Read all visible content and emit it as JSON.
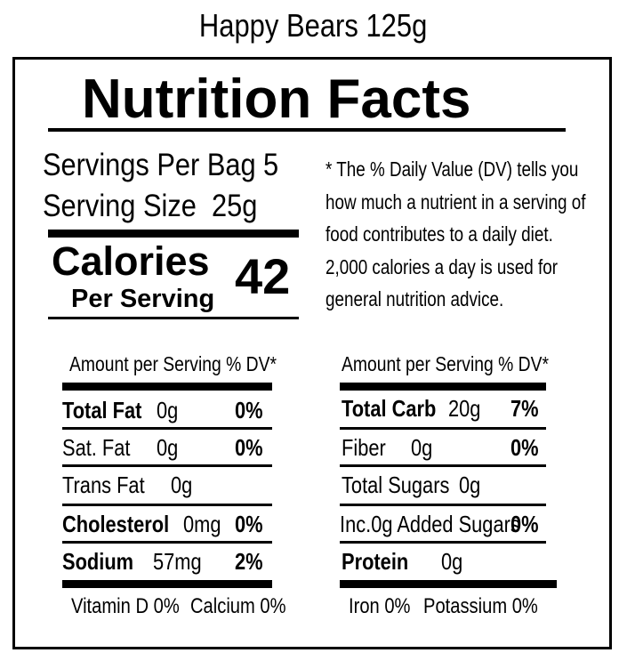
{
  "product": {
    "title": "Happy Bears 125g"
  },
  "label": {
    "heading": "Nutrition Facts",
    "servings_per_bag_label": "Servings Per Bag",
    "servings_per_bag_value": "5",
    "serving_size_label": "Serving Size",
    "serving_size_value": "25g",
    "calories_label": "Calories",
    "per_serving_label": "Per Serving",
    "calories_value": "42",
    "dv_note_lines": [
      "* The % Daily Value (DV) tells you",
      "how much a nutrient in a serving of",
      "food contributes to a daily diet.",
      "2,000 calories a day is used for",
      "general nutrition advice."
    ],
    "left_column": {
      "header": "Amount per Serving % DV*",
      "rows": [
        {
          "name": "Total Fat",
          "amount": "0g",
          "dv": "0%"
        },
        {
          "name": "Sat. Fat",
          "amount": "0g",
          "dv": "0%"
        },
        {
          "name": "Trans Fat",
          "amount": "0g",
          "dv": ""
        },
        {
          "name": "Cholesterol",
          "amount": "0mg",
          "dv": "0%"
        },
        {
          "name": "Sodium",
          "amount": "57mg",
          "dv": "2%"
        }
      ]
    },
    "right_column": {
      "header": "Amount per Serving % DV*",
      "rows": [
        {
          "name": "Total Carb",
          "amount": "20g",
          "dv": "7%"
        },
        {
          "name": "Fiber",
          "amount": "0g",
          "dv": "0%"
        },
        {
          "name": "Total Sugars",
          "amount": "0g",
          "dv": ""
        },
        {
          "name": "Inc.0g Added Sugars",
          "amount": "",
          "dv": "0%"
        },
        {
          "name": "Protein",
          "amount": "0g",
          "dv": ""
        }
      ]
    },
    "footer": {
      "vitamin_d": "Vitamin D 0%",
      "calcium": "Calcium 0%",
      "iron": "Iron 0%",
      "potassium": "Potassium 0%"
    }
  }
}
